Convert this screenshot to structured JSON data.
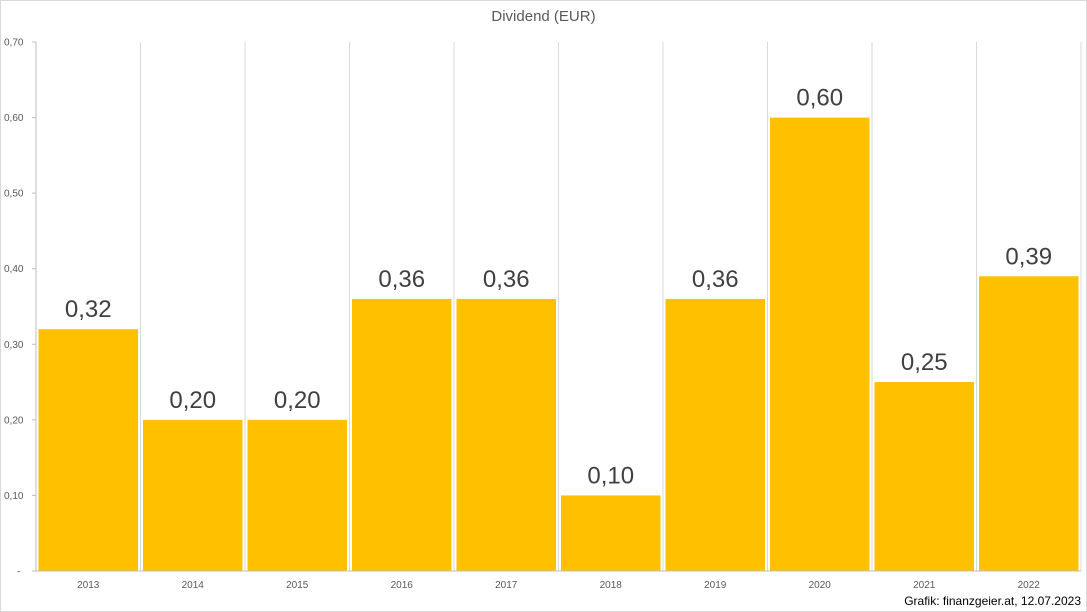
{
  "chart_data": {
    "type": "bar",
    "title": "Dividend (EUR)",
    "categories": [
      "2013",
      "2014",
      "2015",
      "2016",
      "2017",
      "2018",
      "2019",
      "2020",
      "2021",
      "2022"
    ],
    "values": [
      0.32,
      0.2,
      0.2,
      0.36,
      0.36,
      0.1,
      0.36,
      0.6,
      0.25,
      0.39
    ],
    "data_labels": [
      "0,32",
      "0,20",
      "0,20",
      "0,36",
      "0,36",
      "0,10",
      "0,36",
      "0,60",
      "0,25",
      "0,39"
    ],
    "yticks": [
      0,
      0.1,
      0.2,
      0.3,
      0.4,
      0.5,
      0.6,
      0.7
    ],
    "ytick_labels": [
      "-",
      "0,10",
      "0,20",
      "0,30",
      "0,40",
      "0,50",
      "0,60",
      "0,70"
    ],
    "ylim": [
      0,
      0.7
    ],
    "xlabel": "",
    "ylabel": "",
    "grid": "vertical category separators",
    "legend": "none",
    "bar_color": "#FFC000",
    "label_color": "#404040"
  },
  "credit": "Grafik: finanzgeier.at, 12.07.2023"
}
